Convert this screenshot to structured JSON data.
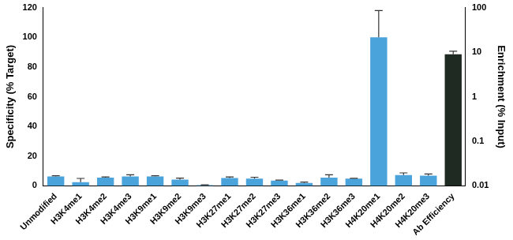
{
  "chart_data": {
    "type": "bar",
    "categories": [
      "Unmodified",
      "H3K4me1",
      "H3K4me2",
      "H3K4me3",
      "H3K9me1",
      "H3K9me2",
      "H3K9me3",
      "H3K27me1",
      "H3K27me2",
      "H3K27me3",
      "H3K36me1",
      "H3K36me2",
      "H3K36me3",
      "H4K20me1",
      "H4K20me2",
      "H4K20me3",
      "Ab Efficiency"
    ],
    "series": [
      {
        "color": "#4ba3dc",
        "values": [
          6.3,
          2.5,
          5.5,
          6.3,
          6.3,
          4.2,
          0.5,
          5.2,
          4.8,
          3.5,
          2.0,
          5.5,
          4.8,
          100,
          7.2,
          6.8,
          null
        ],
        "errors": [
          0.5,
          2.5,
          0.5,
          1.2,
          0.5,
          1.0,
          0.2,
          0.8,
          1.0,
          0.4,
          0.5,
          2.0,
          0.3,
          18,
          1.5,
          1.2,
          null
        ]
      },
      {
        "color": "#1f2b22",
        "axis": "y2",
        "values": [
          null,
          null,
          null,
          null,
          null,
          null,
          null,
          null,
          null,
          null,
          null,
          null,
          null,
          null,
          null,
          null,
          9
        ],
        "errors": [
          null,
          null,
          null,
          null,
          null,
          null,
          null,
          null,
          null,
          null,
          null,
          null,
          null,
          null,
          null,
          null,
          1.5
        ]
      }
    ],
    "ylabel": "Specificity (% Target)",
    "y2label": "Enrichment (% Input)",
    "ylim": [
      0,
      120
    ],
    "yticks": [
      0,
      20,
      40,
      60,
      80,
      100,
      120
    ],
    "y2lim": [
      0.01,
      100
    ],
    "y2ticks": [
      0.01,
      0.1,
      1,
      10,
      100
    ],
    "log": "y2",
    "grid": false
  }
}
